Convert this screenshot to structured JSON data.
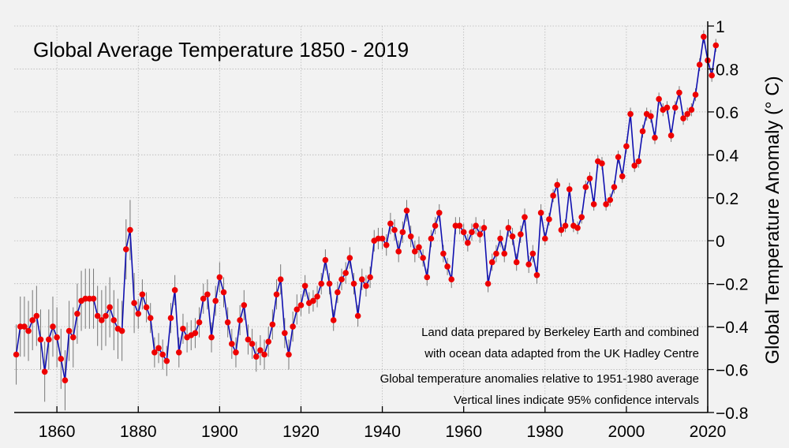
{
  "chart_data": {
    "type": "line",
    "title": "Global Average Temperature 1850 - 2019",
    "ylabel": "Global Temperature Anomaly (° C)",
    "xlabel": "",
    "xlim": [
      1849.5,
      2020
    ],
    "ylim": [
      -0.8,
      1.0
    ],
    "x_ticks": [
      1860,
      1880,
      1900,
      1920,
      1940,
      1960,
      1980,
      2000,
      2020
    ],
    "y_ticks": [
      1,
      0.8,
      0.6,
      0.4,
      0.2,
      0,
      -0.2,
      -0.4,
      -0.6,
      -0.8
    ],
    "y_axis_side": "right",
    "grid": true,
    "annotations": [
      "Land data prepared by Berkeley Earth and combined",
      "with ocean data adapted from the UK Hadley Centre",
      "Global temperature anomalies relative to 1951-1980 average",
      "Vertical lines indicate 95% confidence intervals"
    ],
    "colors": {
      "line": "#1010b0",
      "point": "#ee0000",
      "error_bar": "#777777",
      "grid": "#b8b8b8"
    },
    "series": [
      {
        "x_start": 1850,
        "values": [
          -0.53,
          -0.4,
          -0.4,
          -0.42,
          -0.37,
          -0.35,
          -0.46,
          -0.61,
          -0.46,
          -0.4,
          -0.45,
          -0.55,
          -0.65,
          -0.42,
          -0.45,
          -0.34,
          -0.28,
          -0.27,
          -0.27,
          -0.27,
          -0.35,
          -0.37,
          -0.35,
          -0.31,
          -0.37,
          -0.41,
          -0.42,
          -0.04,
          0.05,
          -0.29,
          -0.34,
          -0.25,
          -0.31,
          -0.36,
          -0.52,
          -0.5,
          -0.53,
          -0.56,
          -0.36,
          -0.23,
          -0.52,
          -0.41,
          -0.45,
          -0.44,
          -0.43,
          -0.38,
          -0.27,
          -0.25,
          -0.45,
          -0.28,
          -0.17,
          -0.24,
          -0.38,
          -0.48,
          -0.52,
          -0.37,
          -0.3,
          -0.46,
          -0.48,
          -0.54,
          -0.51,
          -0.53,
          -0.47,
          -0.39,
          -0.25,
          -0.18,
          -0.43,
          -0.53,
          -0.4,
          -0.32,
          -0.3,
          -0.21,
          -0.29,
          -0.28,
          -0.26,
          -0.2,
          -0.09,
          -0.2,
          -0.37,
          -0.24,
          -0.18,
          -0.15,
          -0.08,
          -0.2,
          -0.35,
          -0.18,
          -0.21,
          -0.17,
          0.0,
          0.01,
          0.01,
          -0.02,
          0.08,
          0.05,
          -0.05,
          0.04,
          0.14,
          0.02,
          -0.05,
          -0.03,
          -0.08,
          -0.17,
          0.01,
          0.07,
          0.13,
          -0.06,
          -0.12,
          -0.18,
          0.07,
          0.07,
          0.04,
          -0.01,
          0.04,
          0.07,
          0.03,
          0.06,
          -0.2,
          -0.1,
          -0.06,
          0.01,
          -0.06,
          0.06,
          0.02,
          -0.1,
          0.03,
          0.11,
          -0.11,
          -0.06,
          -0.16,
          0.13,
          0.01,
          0.1,
          0.21,
          0.26,
          0.05,
          0.07,
          0.24,
          0.07,
          0.06,
          0.11,
          0.25,
          0.29,
          0.17,
          0.37,
          0.36,
          0.17,
          0.19,
          0.25,
          0.39,
          0.3,
          0.44,
          0.59,
          0.35,
          0.37,
          0.51,
          0.59,
          0.58,
          0.48,
          0.66,
          0.61,
          0.62,
          0.49,
          0.62,
          0.69,
          0.57,
          0.59,
          0.61,
          0.68,
          0.82,
          0.95,
          0.84,
          0.77,
          0.91
        ]
      }
    ],
    "error_margins_by_era": [
      {
        "from": 1850,
        "to": 1879,
        "margin": 0.14
      },
      {
        "from": 1880,
        "to": 1919,
        "margin": 0.07
      },
      {
        "from": 1920,
        "to": 1949,
        "margin": 0.05
      },
      {
        "from": 1950,
        "to": 1979,
        "margin": 0.04
      },
      {
        "from": 1980,
        "to": 2019,
        "margin": 0.03
      }
    ]
  }
}
